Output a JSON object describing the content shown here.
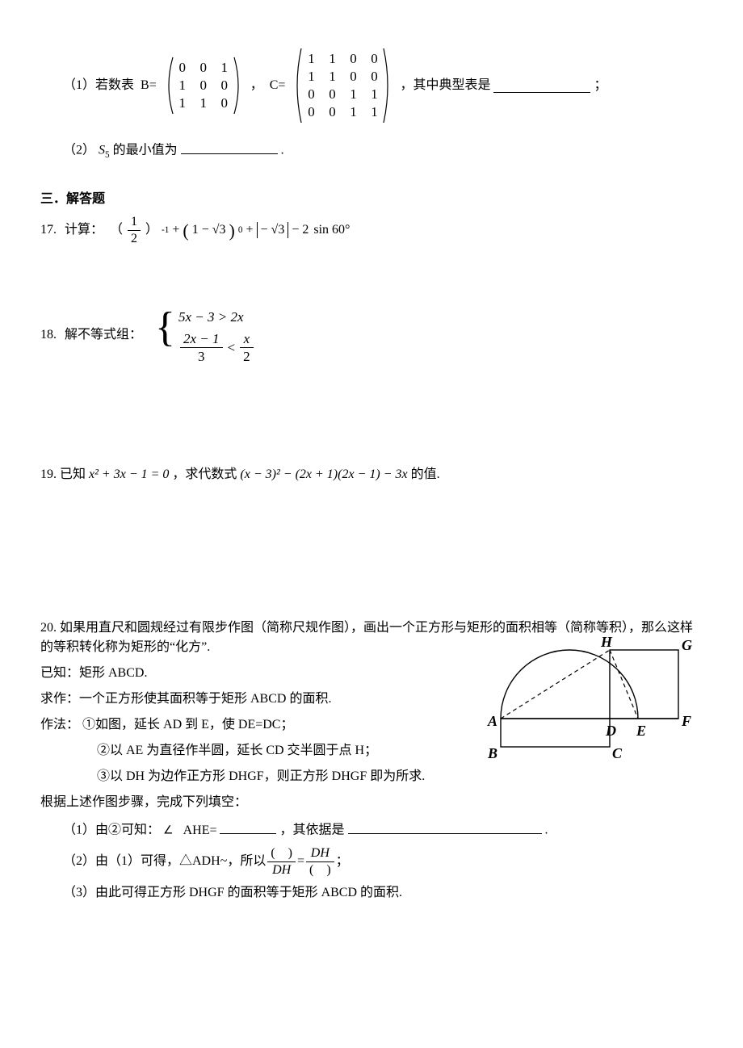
{
  "q16": {
    "part1_label": "（1）若数表",
    "B_label": "B=",
    "B": [
      [
        "0",
        "0",
        "1"
      ],
      [
        "1",
        "0",
        "0"
      ],
      [
        "1",
        "1",
        "0"
      ]
    ],
    "C_label": "C=",
    "C": [
      [
        "1",
        "1",
        "0",
        "0"
      ],
      [
        "1",
        "1",
        "0",
        "0"
      ],
      [
        "0",
        "0",
        "1",
        "1"
      ],
      [
        "0",
        "0",
        "1",
        "1"
      ]
    ],
    "part1_tail_a": "，其中典型表是",
    "part1_tail_b": "；",
    "part2_label": "（2）",
    "part2_var": "S",
    "part2_sub": "5",
    "part2_text": " 的最小值为",
    "part2_tail": "."
  },
  "sec3": "三．解答题",
  "q17": {
    "num": "17.",
    "stem": "计算：",
    "lp": "（",
    "frac_num": "1",
    "frac_den": "2",
    "rp": "）",
    "pow_neg1": "-1",
    "plus1": " + ",
    "paren_expr_l": "(",
    "paren_expr_inner_a": "1 − ",
    "sqrt3_a": "√3",
    "paren_expr_r": ")",
    "pow0": "0",
    "plus2": " + ",
    "abs_inner_a": "− ",
    "abs_sqrt3": "√3",
    "minus": " − ",
    "two": "2",
    "sin60": "sin 60°"
  },
  "q18": {
    "num": "18.",
    "stem": "解不等式组：",
    "line1": "5x − 3 > 2x",
    "line2_num": "2x − 1",
    "line2_den": "3",
    "lt": "<",
    "line2b_num": "x",
    "line2b_den": "2"
  },
  "q19": {
    "num": "19.",
    "stem_a": "已知 ",
    "eq": "x² + 3x − 1 = 0",
    "stem_b": "，求代数式 ",
    "expr": "(x − 3)² − (2x + 1)(2x − 1) − 3x",
    "stem_c": " 的值."
  },
  "q20": {
    "num": "20.",
    "line1": "如果用直尺和圆规经过有限步作图（简称尺规作图），画出一个正方形与矩形的面积相等（简称等积），那么这样的等积转化称为矩形的“化方”.",
    "known": "已知：矩形 ABCD.",
    "ask": "求作：一个正方形使其面积等于矩形 ABCD 的面积.",
    "method_label": "作法：",
    "m1": "①如图，延长 AD 到 E，使 DE=DC；",
    "m2": "②以 AE 为直径作半圆，延长 CD 交半圆于点 H；",
    "m3": "③以 DH 为边作正方形 DHGF，则正方形 DHGF 即为所求.",
    "follow": "根据上述作图步骤，完成下列填空：",
    "p1_a": "（1）由②可知：",
    "p1_angle_sym": "∠",
    "p1_b": "AHE=",
    "p1_c": "，其依据是",
    "p1_tail": ".",
    "p2_a": "（2）由（1）可得，△ADH~",
    "p2_b": "，所以 ",
    "p2_frac1_num": "( )",
    "p2_frac1_den": "DH",
    "p2_eq": " = ",
    "p2_frac2_num": "DH",
    "p2_frac2_den": "( )",
    "p2_tail": "；",
    "p3": "（3）由此可得正方形 DHGF 的面积等于矩形 ABCD 的面积.",
    "labels": {
      "A": "A",
      "B": "B",
      "C": "C",
      "D": "D",
      "E": "E",
      "F": "F",
      "G": "G",
      "H": "H"
    }
  },
  "colors": {
    "text": "#000000",
    "bg": "#ffffff",
    "line": "#000000"
  }
}
